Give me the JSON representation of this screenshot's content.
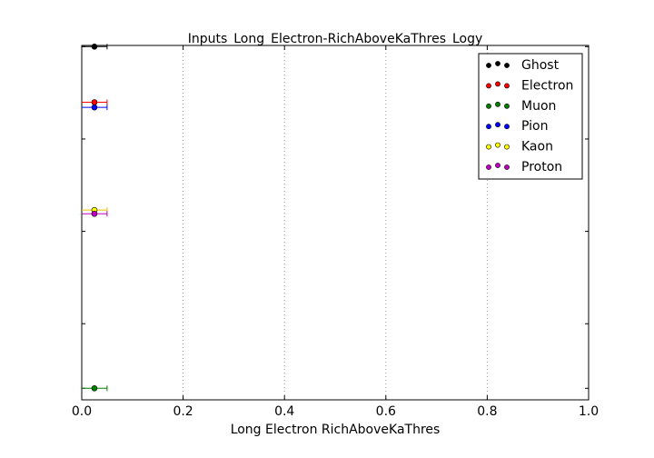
{
  "chart_data": {
    "type": "scatter",
    "title": "Inputs_Long_Electron-RichAboveKaThres_Logy",
    "xlabel": "Long Electron RichAboveKaThres",
    "ylabel": "",
    "xlim": [
      0.0,
      1.0
    ],
    "yscale": "log",
    "xticks": [
      "0.0",
      "0.2",
      "0.4",
      "0.6",
      "0.8",
      "1.0"
    ],
    "grid": "vertical dotted",
    "legend_position": "top-right",
    "series": [
      {
        "name": "Ghost",
        "color": "#000000",
        "x": 0.025,
        "xerr": 0.025,
        "y_rel": 0.9999
      },
      {
        "name": "Electron",
        "color": "#ff0000",
        "x": 0.025,
        "xerr": 0.025,
        "y_rel": 0.25
      },
      {
        "name": "Muon",
        "color": "#008000",
        "x": 0.025,
        "xerr": 0.025,
        "y_rel": 0.0002
      },
      {
        "name": "Pion",
        "color": "#0000ff",
        "x": 0.025,
        "xerr": 0.025,
        "y_rel": 0.22
      },
      {
        "name": "Kaon",
        "color": "#ffff00",
        "x": 0.025,
        "xerr": 0.025,
        "y_rel": 0.017
      },
      {
        "name": "Proton",
        "color": "#bf00bf",
        "x": 0.025,
        "xerr": 0.025,
        "y_rel": 0.0155
      }
    ]
  }
}
